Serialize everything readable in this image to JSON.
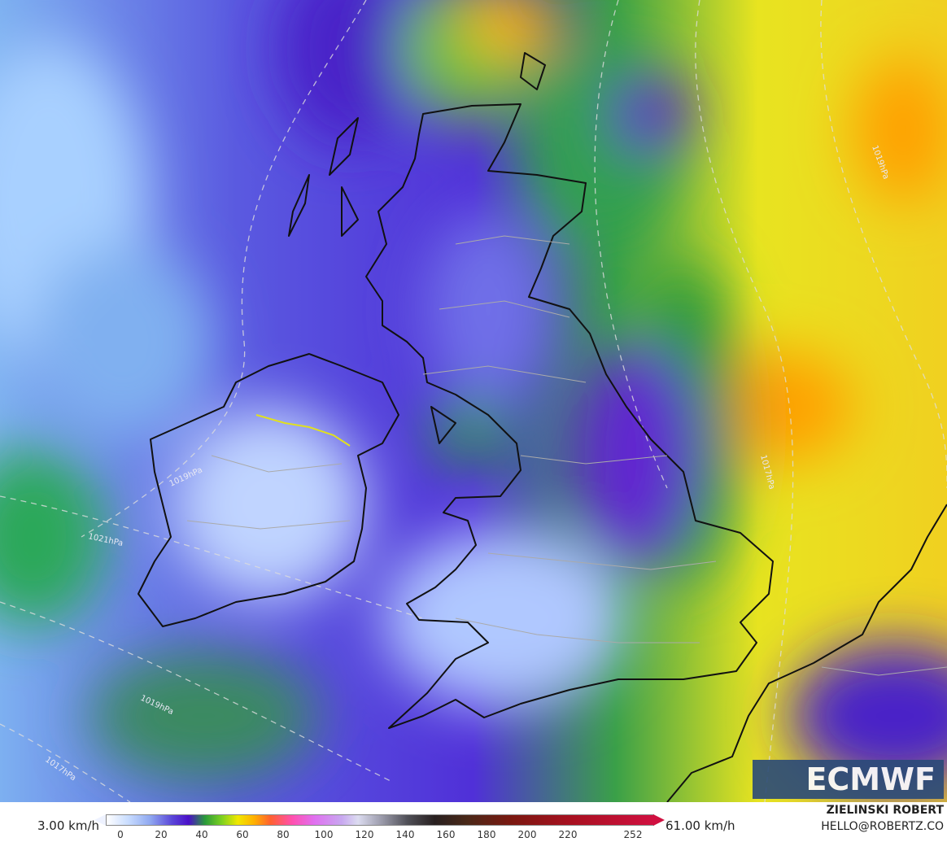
{
  "map": {
    "min_label": "3.00 km/h",
    "max_label": "61.00 km/h",
    "colorbar": {
      "ticks": [
        0,
        20,
        40,
        60,
        80,
        100,
        120,
        140,
        160,
        180,
        200,
        220,
        252
      ]
    },
    "isobar_labels": [
      "1021hPa",
      "1019hPa",
      "1017hPa",
      "1019hPa",
      "1017hPa",
      "1019hPa"
    ],
    "logo": "ECMWF",
    "credit": {
      "name": "ZIELINSKI ROBERT",
      "contact": "HELLO@ROBERTZ.CO"
    }
  }
}
